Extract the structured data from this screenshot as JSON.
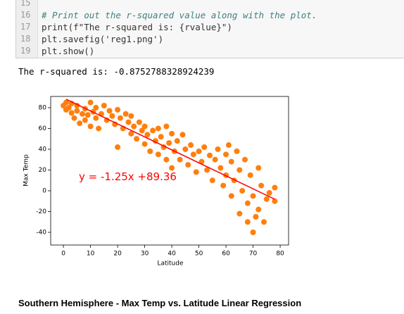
{
  "code": {
    "lines": [
      {
        "number": "15",
        "text": ""
      },
      {
        "number": "16",
        "text": "# Print out the r-squared value along with the plot."
      },
      {
        "number": "17",
        "text": "print(f\"The r-squared is: {rvalue}\")"
      },
      {
        "number": "18",
        "text": "plt.savefig('reg1.png')"
      },
      {
        "number": "19",
        "text": "plt.show()"
      }
    ]
  },
  "output": "The r-squared is: -0.8752788328924239",
  "chart_data": {
    "type": "scatter",
    "x_label": "Latitude",
    "y_label": "Max Temp",
    "annotation": "y = -1.25x +89.36",
    "color": "#ff7f0e",
    "x": [
      0,
      1,
      1,
      2,
      3,
      3,
      4,
      5,
      5,
      6,
      7,
      8,
      8,
      9,
      10,
      10,
      11,
      12,
      12,
      13,
      14,
      15,
      16,
      17,
      18,
      19,
      20,
      20,
      21,
      22,
      23,
      24,
      25,
      25,
      26,
      27,
      28,
      29,
      30,
      30,
      31,
      32,
      33,
      34,
      35,
      35,
      36,
      37,
      38,
      38,
      39,
      40,
      40,
      41,
      42,
      43,
      44,
      45,
      46,
      47,
      48,
      49,
      50,
      51,
      52,
      53,
      54,
      55,
      56,
      57,
      58,
      59,
      60,
      60,
      61,
      62,
      62,
      63,
      64,
      65,
      65,
      66,
      67,
      68,
      68,
      69,
      70,
      70,
      71,
      72,
      72,
      73,
      74,
      75,
      76,
      78,
      78
    ],
    "values": [
      82,
      78,
      85,
      80,
      75,
      84,
      70,
      77,
      82,
      65,
      74,
      79,
      68,
      73,
      85,
      62,
      76,
      80,
      70,
      60,
      74,
      82,
      68,
      77,
      72,
      64,
      78,
      42,
      70,
      60,
      74,
      66,
      55,
      72,
      62,
      50,
      66,
      58,
      45,
      62,
      54,
      38,
      58,
      48,
      60,
      35,
      52,
      42,
      62,
      30,
      46,
      55,
      22,
      38,
      48,
      30,
      54,
      40,
      25,
      44,
      35,
      18,
      38,
      28,
      42,
      20,
      34,
      10,
      30,
      40,
      22,
      5,
      35,
      15,
      44,
      -5,
      28,
      10,
      38,
      20,
      -22,
      0,
      30,
      -12,
      -30,
      15,
      -5,
      -40,
      -25,
      22,
      -18,
      5,
      -30,
      -8,
      -2,
      -10,
      3
    ],
    "fit_line": {
      "x": [
        1,
        78
      ],
      "values": [
        88.1,
        -8.1
      ],
      "color": "#ff0000"
    },
    "xlim": [
      -4.7,
      83.1
    ],
    "ylim": [
      -52.2,
      90.8
    ],
    "xticks": [
      0,
      10,
      20,
      30,
      40,
      50,
      60,
      70,
      80
    ],
    "yticks": [
      -40,
      -20,
      0,
      20,
      40,
      60,
      80
    ]
  },
  "heading": "Southern Hemisphere - Max Temp vs. Latitude Linear Regression"
}
